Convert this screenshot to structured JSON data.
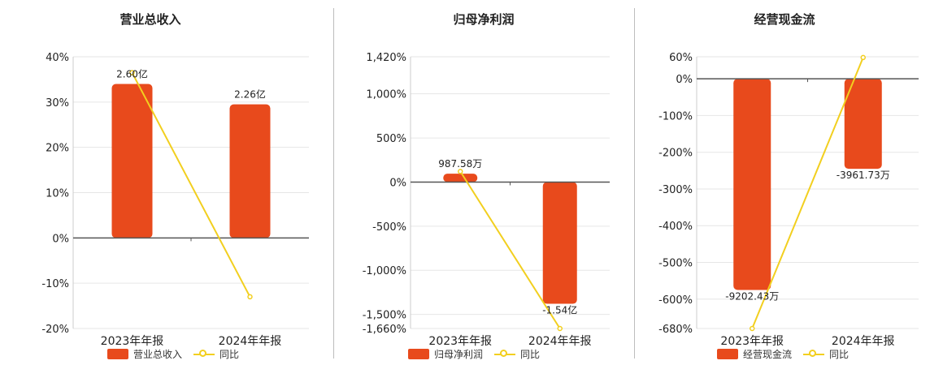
{
  "colors": {
    "bar": "#e84a1c",
    "line": "#f2cf1f",
    "grid": "#e6e6e6",
    "axis": "#555555",
    "text": "#222222"
  },
  "chart_data": [
    {
      "type": "bar",
      "title": "营业总收入",
      "categories": [
        "2023年年报",
        "2024年年报"
      ],
      "ylim": [
        -20,
        40
      ],
      "yticks": [
        40,
        30,
        20,
        10,
        0,
        -10,
        -20
      ],
      "ytick_labels": [
        "40%",
        "30%",
        "20%",
        "10%",
        "0%",
        "-10%",
        "-20%"
      ],
      "bar_values_pct": [
        34,
        29.5
      ],
      "bar_labels": [
        "2.60亿",
        "2.26亿"
      ],
      "line_values_pct": [
        36.5,
        -13
      ],
      "legend": {
        "bar": "营业总收入",
        "line": "同比"
      }
    },
    {
      "type": "bar",
      "title": "归母净利润",
      "categories": [
        "2023年年报",
        "2024年年报"
      ],
      "ylim": [
        -1660,
        1420
      ],
      "yticks": [
        1420,
        1000,
        500,
        0,
        -500,
        -1000,
        -1500,
        -1660
      ],
      "ytick_labels": [
        "1,420%",
        "1,000%",
        "500%",
        "0%",
        "-500%",
        "-1,000%",
        "-1,500%",
        "-1,660%"
      ],
      "bar_values_pct": [
        95,
        -1380
      ],
      "bar_labels": [
        "987.58万",
        "-1.54亿"
      ],
      "line_values_pct": [
        120,
        -1660
      ],
      "legend": {
        "bar": "归母净利润",
        "line": "同比"
      }
    },
    {
      "type": "bar",
      "title": "经营现金流",
      "categories": [
        "2023年年报",
        "2024年年报"
      ],
      "ylim": [
        -680,
        60
      ],
      "yticks": [
        60,
        0,
        -100,
        -200,
        -300,
        -400,
        -500,
        -600,
        -680
      ],
      "ytick_labels": [
        "60%",
        "0%",
        "-100%",
        "-200%",
        "-300%",
        "-400%",
        "-500%",
        "-600%",
        "-680%"
      ],
      "bar_values_pct": [
        -575,
        -245
      ],
      "bar_labels": [
        "-9202.43万",
        "-3961.73万"
      ],
      "line_values_pct": [
        -680,
        58
      ],
      "legend": {
        "bar": "经营现金流",
        "line": "同比"
      }
    }
  ]
}
